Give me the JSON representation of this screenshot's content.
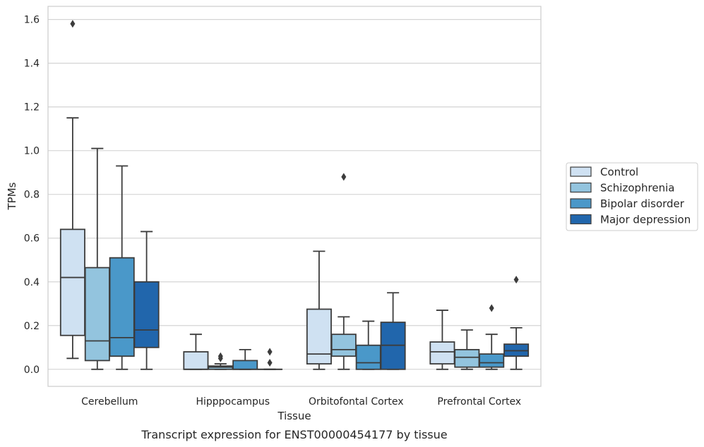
{
  "chart_data": {
    "type": "box",
    "xlabel": "Tissue",
    "ylabel": "TPMs",
    "caption": "Transcript expression for ENST00000454177 by tissue",
    "ylim": [
      -0.078,
      1.66
    ],
    "yticks": [
      "0.0",
      "0.2",
      "0.4",
      "0.6",
      "0.8",
      "1.0",
      "1.2",
      "1.4",
      "1.6"
    ],
    "grid": true,
    "legend_position": "right",
    "categories": [
      "Cerebellum",
      "Hipppocampus",
      "Orbitofontal Cortex",
      "Prefrontal Cortex"
    ],
    "series": [
      {
        "name": "Control",
        "color": "#cfe1f2",
        "boxes": [
          {
            "q1": 0.155,
            "median": 0.42,
            "q3": 0.64,
            "whisker_low": 0.05,
            "whisker_high": 1.15,
            "outliers": [
              1.58
            ]
          },
          {
            "q1": 0.0,
            "median": 0.0,
            "q3": 0.08,
            "whisker_low": 0.0,
            "whisker_high": 0.16,
            "outliers": []
          },
          {
            "q1": 0.025,
            "median": 0.07,
            "q3": 0.275,
            "whisker_low": 0.0,
            "whisker_high": 0.54,
            "outliers": []
          },
          {
            "q1": 0.025,
            "median": 0.08,
            "q3": 0.125,
            "whisker_low": 0.0,
            "whisker_high": 0.27,
            "outliers": []
          }
        ]
      },
      {
        "name": "Schizophrenia",
        "color": "#93c4de",
        "boxes": [
          {
            "q1": 0.04,
            "median": 0.13,
            "q3": 0.465,
            "whisker_low": 0.0,
            "whisker_high": 1.01,
            "outliers": []
          },
          {
            "q1": 0.0,
            "median": 0.01,
            "q3": 0.015,
            "whisker_low": 0.0,
            "whisker_high": 0.025,
            "outliers": [
              0.05,
              0.06
            ]
          },
          {
            "q1": 0.06,
            "median": 0.09,
            "q3": 0.16,
            "whisker_low": 0.0,
            "whisker_high": 0.24,
            "outliers": [
              0.88
            ]
          },
          {
            "q1": 0.01,
            "median": 0.055,
            "q3": 0.09,
            "whisker_low": 0.0,
            "whisker_high": 0.18,
            "outliers": []
          }
        ]
      },
      {
        "name": "Bipolar disorder",
        "color": "#4a98c9",
        "boxes": [
          {
            "q1": 0.06,
            "median": 0.145,
            "q3": 0.51,
            "whisker_low": 0.0,
            "whisker_high": 0.93,
            "outliers": []
          },
          {
            "q1": 0.0,
            "median": 0.0,
            "q3": 0.04,
            "whisker_low": 0.0,
            "whisker_high": 0.09,
            "outliers": []
          },
          {
            "q1": 0.0,
            "median": 0.03,
            "q3": 0.11,
            "whisker_low": 0.0,
            "whisker_high": 0.22,
            "outliers": []
          },
          {
            "q1": 0.01,
            "median": 0.03,
            "q3": 0.07,
            "whisker_low": 0.0,
            "whisker_high": 0.16,
            "outliers": [
              0.28
            ]
          }
        ]
      },
      {
        "name": "Major depression",
        "color": "#2166ac",
        "boxes": [
          {
            "q1": 0.1,
            "median": 0.18,
            "q3": 0.4,
            "whisker_low": 0.0,
            "whisker_high": 0.63,
            "outliers": []
          },
          {
            "q1": 0.0,
            "median": 0.0,
            "q3": 0.0,
            "whisker_low": 0.0,
            "whisker_high": 0.0,
            "outliers": [
              0.03,
              0.08
            ]
          },
          {
            "q1": 0.0,
            "median": 0.11,
            "q3": 0.215,
            "whisker_low": 0.0,
            "whisker_high": 0.35,
            "outliers": []
          },
          {
            "q1": 0.06,
            "median": 0.085,
            "q3": 0.115,
            "whisker_low": 0.0,
            "whisker_high": 0.19,
            "outliers": [
              0.41
            ]
          }
        ]
      }
    ]
  }
}
